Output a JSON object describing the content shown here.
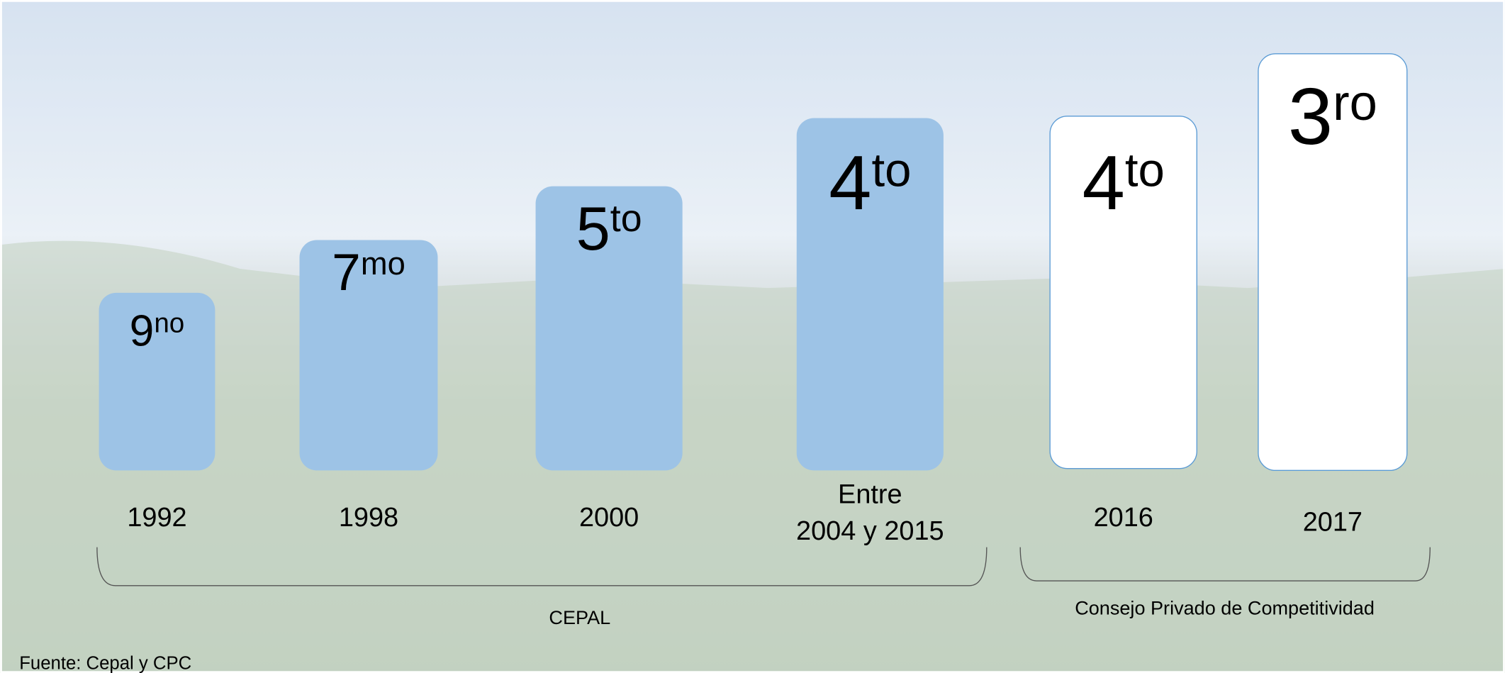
{
  "items": [
    {
      "rank": "9",
      "suffix": "no",
      "year": [
        "1992"
      ]
    },
    {
      "rank": "7",
      "suffix": "mo",
      "year": [
        "1998"
      ]
    },
    {
      "rank": "5",
      "suffix": "to",
      "year": [
        "2000"
      ]
    },
    {
      "rank": "4",
      "suffix": "to",
      "year": [
        "Entre",
        "2004 y 2015"
      ]
    },
    {
      "rank": "4",
      "suffix": "to",
      "year": [
        "2016"
      ]
    },
    {
      "rank": "3",
      "suffix": "ro",
      "year": [
        "2017"
      ]
    }
  ],
  "groups": [
    {
      "label": "CEPAL"
    },
    {
      "label": "Consejo Privado de Competitividad"
    }
  ],
  "source": "Fuente: Cepal y CPC"
}
